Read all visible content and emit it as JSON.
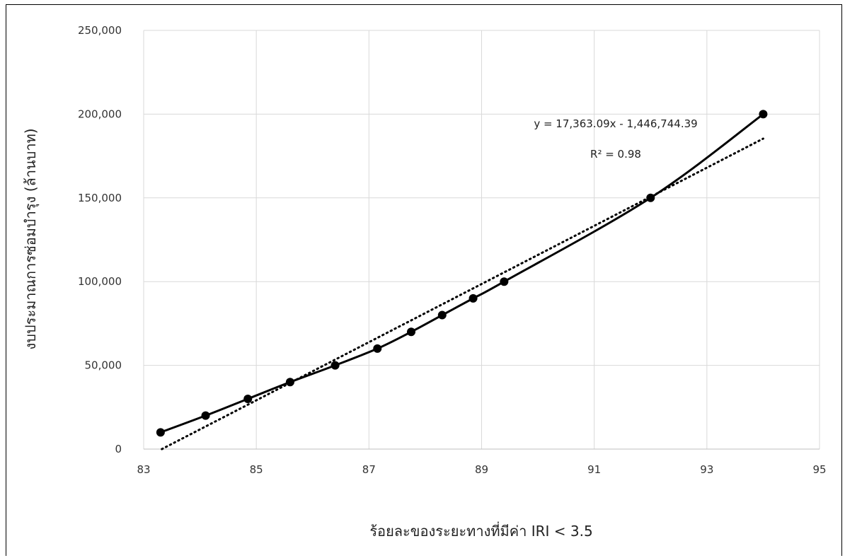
{
  "chart_data": {
    "type": "scatter",
    "xlabel": "ร้อยละของระยะทางที่มีค่า IRI < 3.5",
    "ylabel": "งบประมาณการซ่อมบำรุง (ล้านบาท)",
    "xlim": [
      83,
      95
    ],
    "ylim": [
      0,
      250000
    ],
    "x_ticks": [
      "83",
      "85",
      "87",
      "89",
      "91",
      "93",
      "95"
    ],
    "y_ticks": [
      "0",
      "50,000",
      "100,000",
      "150,000",
      "200,000",
      "250,000"
    ],
    "grid": true,
    "series": [
      {
        "style": "solid-smooth-with-markers",
        "color": "#000000",
        "x": [
          83.3,
          84.1,
          84.85,
          85.6,
          86.4,
          87.15,
          87.75,
          88.3,
          88.85,
          89.4,
          92.0,
          94.0
        ],
        "y": [
          10000,
          20000,
          30000,
          40000,
          50000,
          60000,
          70000,
          80000,
          90000,
          100000,
          150000,
          200000
        ]
      }
    ],
    "trendline": {
      "style": "dotted",
      "color": "#000000",
      "slope": 17363.09,
      "intercept": -1446744.39,
      "equation_label": "y = 17,363.09x - 1,446,744.39",
      "r2_label": "R² = 0.98"
    }
  }
}
